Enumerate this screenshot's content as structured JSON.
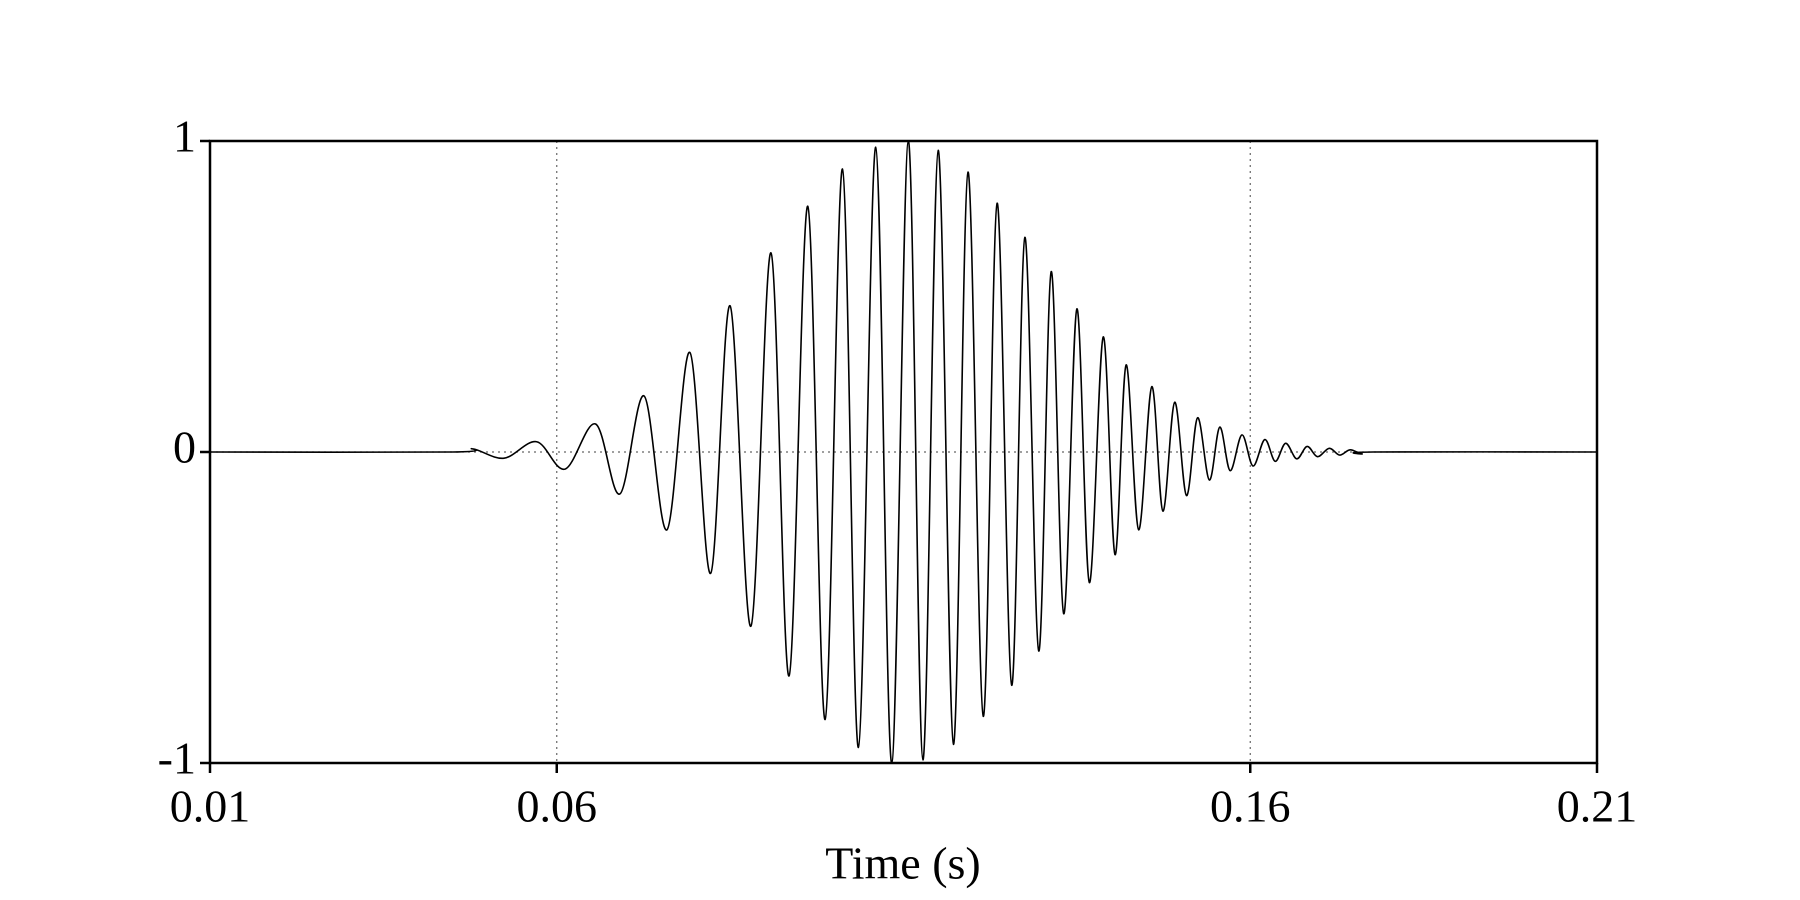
{
  "chart_data": {
    "type": "line",
    "x_label": "Time (s)",
    "xlim": [
      0.01,
      0.21
    ],
    "xticks": [
      0.01,
      0.06,
      0.16,
      0.21
    ],
    "ylim": [
      -1,
      1
    ],
    "yticks": [
      -1,
      0,
      1
    ],
    "grid": true,
    "series": [
      {
        "color": "#000000",
        "x": [
          0.01,
          0.045,
          0.0479,
          0.0524,
          0.0571,
          0.0612,
          0.0656,
          0.0691,
          0.0726,
          0.0759,
          0.0792,
          0.0822,
          0.085,
          0.088,
          0.0909,
          0.0935,
          0.0962,
          0.0987,
          0.1012,
          0.1035,
          0.106,
          0.1083,
          0.1107,
          0.1128,
          0.115,
          0.1172,
          0.1193,
          0.1215,
          0.1235,
          0.1256,
          0.1275,
          0.1295,
          0.1313,
          0.1331,
          0.135,
          0.1368,
          0.1388,
          0.1405,
          0.1421,
          0.1439,
          0.1458,
          0.1474,
          0.1491,
          0.1508,
          0.1524,
          0.1541,
          0.1556,
          0.1571,
          0.1588,
          0.1604,
          0.1621,
          0.1636,
          0.1651,
          0.1667,
          0.1682,
          0.1697,
          0.1714,
          0.1729,
          0.1744,
          0.1761,
          0.1777,
          0.21
        ],
        "values": [
          0,
          0,
          0.01,
          -0.02,
          0.033,
          -0.055,
          0.09,
          -0.135,
          0.18,
          -0.25,
          0.32,
          -0.39,
          0.47,
          -0.56,
          0.64,
          -0.72,
          0.79,
          -0.86,
          0.91,
          -0.95,
          0.98,
          -1,
          1,
          -0.99,
          0.97,
          -0.94,
          0.9,
          -0.85,
          0.8,
          -0.75,
          0.69,
          -0.64,
          0.58,
          -0.52,
          0.46,
          -0.42,
          0.37,
          -0.33,
          0.28,
          -0.25,
          0.21,
          -0.19,
          0.16,
          -0.14,
          0.11,
          -0.09,
          0.08,
          -0.06,
          0.055,
          -0.045,
          0.04,
          -0.03,
          0.028,
          -0.022,
          0.018,
          -0.015,
          0.012,
          -0.01,
          0.007,
          -0.006,
          0,
          0
        ]
      }
    ]
  }
}
